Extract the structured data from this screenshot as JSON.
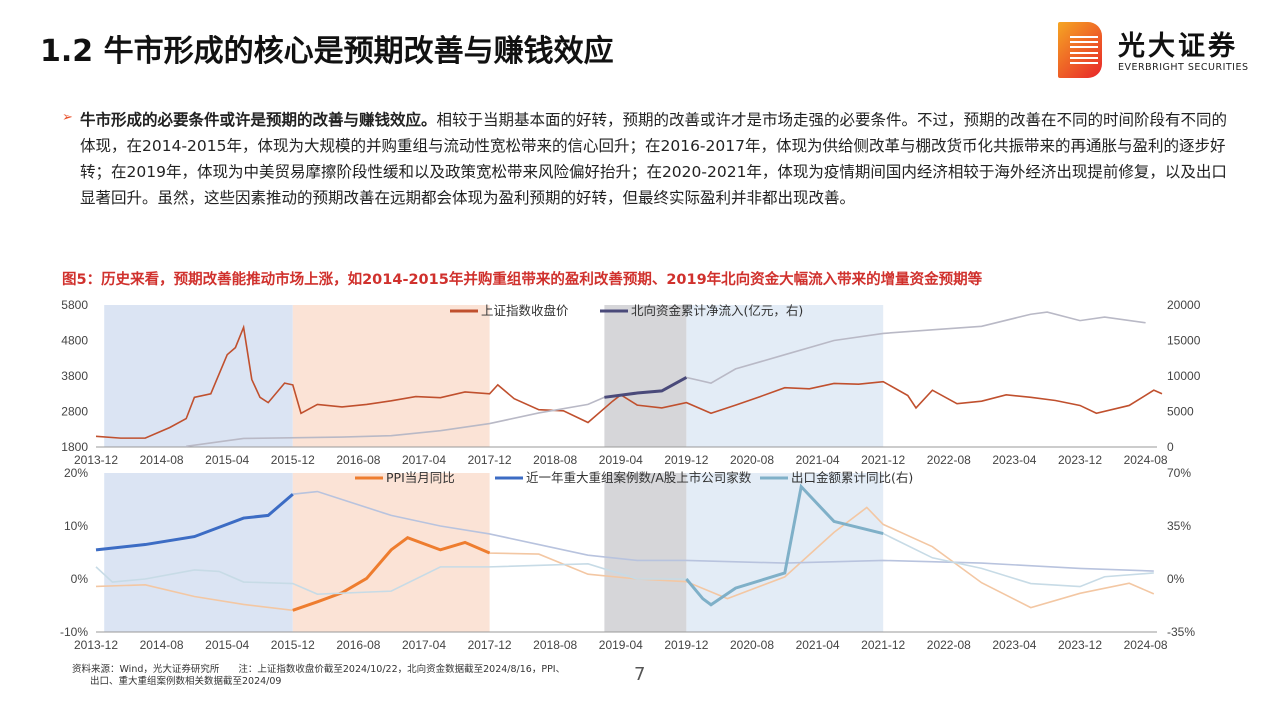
{
  "header": {
    "title": "1.2 牛市形成的核心是预期改善与赚钱效应"
  },
  "logo": {
    "cn": "光大证券",
    "en": "EVERBRIGHT SECURITIES",
    "colors": [
      "#f5a623",
      "#e8242a"
    ]
  },
  "body": {
    "bold_lead": "牛市形成的必要条件或许是预期的改善与赚钱效应。",
    "text": "相较于当期基本面的好转，预期的改善或许才是市场走强的必要条件。不过，预期的改善在不同的时间阶段有不同的体现，在2014-2015年，体现为大规模的并购重组与流动性宽松带来的信心回升；在2016-2017年，体现为供给侧改革与棚改货币化共振带来的再通胀与盈利的逐步好转；在2019年，体现为中美贸易摩擦阶段性缓和以及政策宽松带来风险偏好抬升；在2020-2021年，体现为疫情期间国内经济相较于海外经济出现提前修复，以及出口显著回升。虽然，这些因素推动的预期改善在远期都会体现为盈利预期的好转，但最终实际盈利并非都出现改善。"
  },
  "figure": {
    "caption": "图5：历史来看，预期改善能推动市场上涨，如2014-2015年并购重组带来的盈利改善预期、2019年北向资金大幅流入带来的增量资金预期等"
  },
  "footer": {
    "source_line1": "资料来源：Wind，光大证券研究所　　注：上证指数收盘价截至2024/10/22，北向资金数据截至2024/8/16，PPI、",
    "source_line2": "出口、重大重组案例数相关数据截至2024/09",
    "page": "7"
  },
  "chart_data": [
    {
      "type": "line",
      "x_ticks": [
        "2013-12",
        "2014-08",
        "2015-04",
        "2015-12",
        "2016-08",
        "2017-04",
        "2017-12",
        "2018-08",
        "2019-04",
        "2019-12",
        "2020-08",
        "2021-04",
        "2021-12",
        "2022-08",
        "2023-04",
        "2023-12",
        "2024-08"
      ],
      "ylim": [
        1800,
        5800
      ],
      "y_ticks": [
        "1800",
        "2800",
        "3800",
        "4800",
        "5800"
      ],
      "y2lim": [
        0,
        20000
      ],
      "y2_ticks": [
        "0",
        "5000",
        "10000",
        "15000",
        "20000"
      ],
      "shaded_periods": [
        {
          "from": "2014-01",
          "to": "2015-12",
          "color": "#dbe4f3"
        },
        {
          "from": "2015-12",
          "to": "2017-12",
          "color": "#fbe3d6"
        },
        {
          "from": "2019-02",
          "to": "2019-12",
          "color": "#d6d6d9"
        },
        {
          "from": "2019-12",
          "to": "2021-12",
          "color": "#e3ecf6"
        }
      ],
      "series": [
        {
          "name": "上证指数收盘价",
          "axis": "left",
          "color": "#c0502e",
          "highlight_color": "#c0502e",
          "x": [
            "2013-12",
            "2014-03",
            "2014-06",
            "2014-09",
            "2014-11",
            "2014-12",
            "2015-02",
            "2015-04",
            "2015-05",
            "2015-06",
            "2015-07",
            "2015-08",
            "2015-09",
            "2015-11",
            "2015-12",
            "2016-01",
            "2016-03",
            "2016-06",
            "2016-09",
            "2016-12",
            "2017-03",
            "2017-06",
            "2017-09",
            "2017-12",
            "2018-01",
            "2018-03",
            "2018-06",
            "2018-09",
            "2018-12",
            "2019-03",
            "2019-04",
            "2019-06",
            "2019-09",
            "2019-12",
            "2020-03",
            "2020-06",
            "2020-09",
            "2020-12",
            "2021-03",
            "2021-06",
            "2021-09",
            "2021-12",
            "2022-03",
            "2022-04",
            "2022-06",
            "2022-09",
            "2022-12",
            "2023-03",
            "2023-06",
            "2023-09",
            "2023-12",
            "2024-02",
            "2024-06",
            "2024-09",
            "2024-10"
          ],
          "y": [
            2100,
            2050,
            2050,
            2350,
            2600,
            3200,
            3300,
            4400,
            4600,
            5170,
            3700,
            3200,
            3050,
            3600,
            3550,
            2750,
            3000,
            2930,
            3000,
            3100,
            3220,
            3190,
            3350,
            3300,
            3550,
            3160,
            2850,
            2820,
            2490,
            3090,
            3270,
            2980,
            2900,
            3050,
            2750,
            2980,
            3220,
            3470,
            3440,
            3590,
            3570,
            3640,
            3250,
            2900,
            3400,
            3020,
            3090,
            3270,
            3200,
            3110,
            2970,
            2750,
            2970,
            3400,
            3300
          ]
        },
        {
          "name": "北向资金累计净流入(亿元，右)",
          "axis": "right",
          "color": "#b9b9c6",
          "highlight_color": "#4a4a7a",
          "highlight": [
            "2019-02",
            "2019-12"
          ],
          "x": [
            "2014-11",
            "2015-06",
            "2016-06",
            "2016-12",
            "2017-06",
            "2017-12",
            "2018-06",
            "2018-12",
            "2019-02",
            "2019-06",
            "2019-09",
            "2019-12",
            "2020-03",
            "2020-06",
            "2020-12",
            "2021-06",
            "2021-12",
            "2022-06",
            "2022-12",
            "2023-06",
            "2023-08",
            "2023-12",
            "2024-03",
            "2024-08"
          ],
          "y": [
            100,
            1200,
            1400,
            1600,
            2300,
            3300,
            4800,
            6000,
            7000,
            7600,
            7900,
            9800,
            9000,
            11000,
            13000,
            15000,
            16000,
            16500,
            17000,
            18700,
            19000,
            17800,
            18300,
            17500
          ]
        }
      ]
    },
    {
      "type": "line",
      "x_ticks": [
        "2013-12",
        "2014-08",
        "2015-04",
        "2015-12",
        "2016-08",
        "2017-04",
        "2017-12",
        "2018-08",
        "2019-04",
        "2019-12",
        "2020-08",
        "2021-04",
        "2021-12",
        "2022-08",
        "2023-04",
        "2023-12",
        "2024-08"
      ],
      "ylim": [
        -10,
        20
      ],
      "y_ticks": [
        "-10%",
        "0%",
        "10%",
        "20%"
      ],
      "y2lim": [
        -35,
        70
      ],
      "y2_ticks": [
        "-35%",
        "0%",
        "35%",
        "70%"
      ],
      "series": [
        {
          "name": "PPI当月同比",
          "axis": "left",
          "color": "#f3c7a3",
          "highlight_color": "#ee7d2f",
          "highlight": [
            "2015-12",
            "2017-12"
          ],
          "x": [
            "2013-12",
            "2014-06",
            "2014-12",
            "2015-06",
            "2015-12",
            "2016-03",
            "2016-06",
            "2016-09",
            "2016-12",
            "2017-02",
            "2017-06",
            "2017-09",
            "2017-12",
            "2018-06",
            "2018-12",
            "2019-06",
            "2019-12",
            "2020-05",
            "2020-12",
            "2021-06",
            "2021-10",
            "2021-12",
            "2022-06",
            "2022-12",
            "2023-06",
            "2023-12",
            "2024-06",
            "2024-09"
          ],
          "y": [
            -1.4,
            -1.1,
            -3.3,
            -4.8,
            -5.9,
            -4.3,
            -2.6,
            0.1,
            5.5,
            7.8,
            5.5,
            6.9,
            4.9,
            4.7,
            0.9,
            0,
            -0.5,
            -3.7,
            0.4,
            8.8,
            13.5,
            10.3,
            6.1,
            -0.7,
            -5.4,
            -2.7,
            -0.8,
            -2.8
          ]
        },
        {
          "name": "近一年重大重组案例数/A股上市公司家数",
          "axis": "left",
          "color": "#b8c3de",
          "highlight_color": "#3c6cc4",
          "highlight": [
            "2013-12",
            "2015-12"
          ],
          "x": [
            "2013-12",
            "2014-06",
            "2014-12",
            "2015-06",
            "2015-09",
            "2015-12",
            "2016-03",
            "2016-06",
            "2016-12",
            "2017-06",
            "2017-12",
            "2018-06",
            "2018-12",
            "2019-06",
            "2019-12",
            "2020-12",
            "2021-12",
            "2022-12",
            "2023-12",
            "2024-09"
          ],
          "y": [
            5.5,
            6.5,
            8,
            11.5,
            12,
            16,
            16.5,
            15,
            12,
            10,
            8.5,
            6.5,
            4.5,
            3.5,
            3.5,
            3,
            3.5,
            3,
            2,
            1.5
          ]
        },
        {
          "name": "出口金额累计同比(右)",
          "axis": "right",
          "color": "#c7dbe6",
          "highlight_color": "#7fb0c8",
          "highlight": [
            "2019-12",
            "2021-12"
          ],
          "x": [
            "2013-12",
            "2014-02",
            "2014-06",
            "2014-12",
            "2015-03",
            "2015-06",
            "2015-12",
            "2016-03",
            "2016-12",
            "2017-06",
            "2017-12",
            "2018-12",
            "2019-06",
            "2019-12",
            "2020-02",
            "2020-03",
            "2020-06",
            "2020-12",
            "2021-02",
            "2021-06",
            "2021-12",
            "2022-06",
            "2022-12",
            "2023-06",
            "2023-12",
            "2024-03",
            "2024-09"
          ],
          "y": [
            8,
            -2,
            0,
            6,
            5,
            -2,
            -3,
            -10,
            -8,
            8,
            8,
            10,
            0,
            0,
            -13,
            -17,
            -6,
            4,
            61,
            38,
            30,
            14,
            7,
            -3,
            -5,
            1.5,
            4
          ]
        }
      ]
    }
  ]
}
